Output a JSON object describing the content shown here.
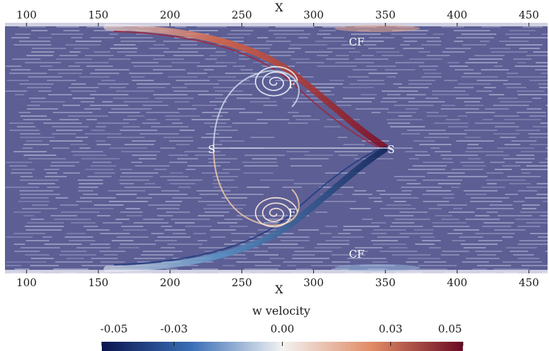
{
  "figure": {
    "x_axis_label_top": "X",
    "x_axis_label_bottom": "X",
    "x_ticks": [
      "100",
      "150",
      "200",
      "250",
      "300",
      "350",
      "400",
      "450"
    ],
    "x_range": [
      85,
      463
    ],
    "colormap": {
      "title": "w velocity",
      "ticks": [
        "-0.05",
        "-0.03",
        "0.00",
        "0.03",
        "0.05"
      ],
      "range": [
        -0.05,
        0.05
      ],
      "colors": [
        "#0a1450",
        "#3b6fb6",
        "#f2f2f2",
        "#e08a64",
        "#6b0a24"
      ]
    },
    "background_color": "#5c5e94",
    "annotations": [
      {
        "id": "cf-top",
        "text": "CF",
        "x": 330,
        "side": "top"
      },
      {
        "id": "f-top",
        "text": "F",
        "x": 285,
        "side": "upper"
      },
      {
        "id": "s-left",
        "text": "S",
        "x": 229,
        "side": "center"
      },
      {
        "id": "s-right",
        "text": "S",
        "x": 354,
        "side": "center"
      },
      {
        "id": "f-bottom",
        "text": "F",
        "x": 285,
        "side": "lower"
      },
      {
        "id": "cf-bottom",
        "text": "CF",
        "x": 330,
        "side": "bottom"
      }
    ]
  }
}
